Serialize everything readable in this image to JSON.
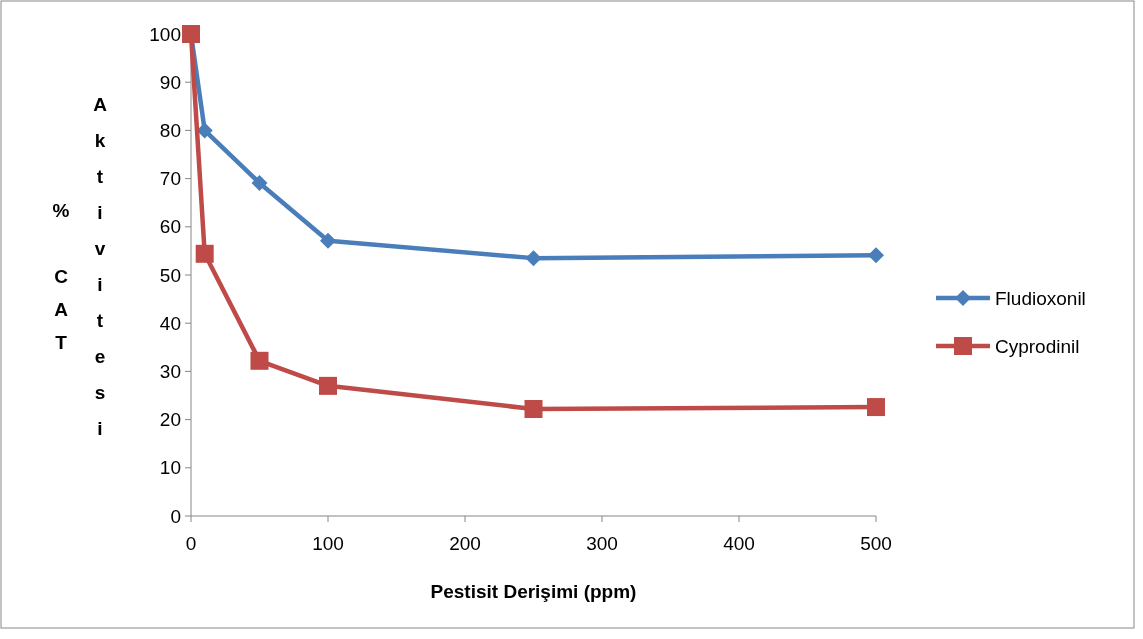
{
  "chart_data": {
    "type": "line",
    "xlabel": "Pestisit Derişimi (ppm)",
    "ylabel": "% CAT Aktivitesi",
    "x": [
      0,
      10,
      50,
      100,
      250,
      500
    ],
    "series": [
      {
        "name": "Fludioxonil",
        "color": "#4a7ebb",
        "values": [
          100,
          80,
          69.1,
          57.1,
          53.5,
          54.1
        ],
        "marker": "diamond"
      },
      {
        "name": "Cyprodinil",
        "color": "#be4b48",
        "values": [
          100,
          54.4,
          32.2,
          27,
          22.2,
          22.6
        ],
        "marker": "square"
      }
    ],
    "xlim": [
      0,
      500
    ],
    "xticks": [
      0,
      100,
      200,
      300,
      400,
      500
    ],
    "ylim": [
      0,
      100
    ],
    "yticks": [
      0,
      10,
      20,
      30,
      40,
      50,
      60,
      70,
      80,
      90,
      100
    ],
    "grid": false,
    "legend": "right",
    "line_style": "solid"
  }
}
